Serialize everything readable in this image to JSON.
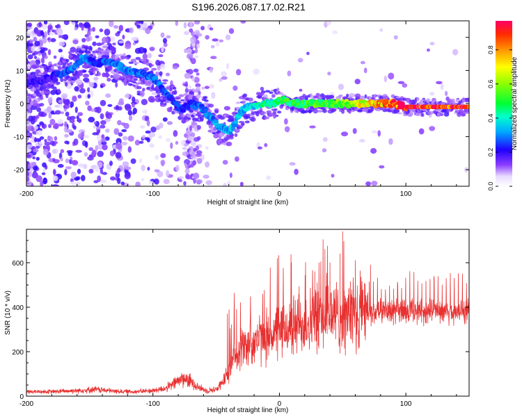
{
  "figure": {
    "title": "S196.2026.087.17.02.R21"
  },
  "chart_data": [
    {
      "type": "heatmap",
      "name": "spectrogram",
      "xlabel": "Height of straight line (km)",
      "ylabel": "Frequency (Hz)",
      "xlim": [
        -200,
        150
      ],
      "ylim": [
        -25,
        25
      ],
      "xticks": [
        -200,
        -100,
        0,
        100
      ],
      "yticks": [
        20,
        10,
        0,
        -10,
        -20
      ],
      "colorbar": {
        "label": "Normalized spectral amplitude",
        "range": [
          0,
          0.97
        ],
        "ticks": [
          0.0,
          0.2,
          0.4,
          0.6,
          0.8
        ]
      },
      "ridge_line": {
        "x": [
          -200,
          -180,
          -165,
          -155,
          -145,
          -135,
          -120,
          -110,
          -100,
          -92,
          -85,
          -78,
          -70,
          -62,
          -55,
          -48,
          -42,
          -38,
          -35,
          -30,
          -25,
          -20,
          -15,
          -10,
          -5,
          0,
          5,
          10,
          20,
          30,
          40,
          50,
          60,
          70,
          80,
          90,
          100,
          110,
          120,
          130,
          140,
          150
        ],
        "y": [
          6,
          8,
          10,
          14,
          12,
          13,
          10,
          9,
          8,
          4,
          1,
          -2,
          0,
          -1,
          -4,
          -7,
          -8,
          -8,
          -6,
          -2,
          -1,
          -1,
          0,
          0,
          0,
          1,
          1,
          0,
          0,
          0,
          0,
          0,
          0,
          0,
          0,
          0,
          -1,
          -1,
          -1,
          -1,
          -1,
          -1
        ],
        "amplitude": [
          0.2,
          0.2,
          0.3,
          0.3,
          0.25,
          0.3,
          0.3,
          0.3,
          0.3,
          0.28,
          0.25,
          0.25,
          0.25,
          0.3,
          0.3,
          0.35,
          0.35,
          0.35,
          0.35,
          0.35,
          0.4,
          0.4,
          0.45,
          0.45,
          0.45,
          0.5,
          0.5,
          0.5,
          0.5,
          0.55,
          0.55,
          0.6,
          0.7,
          0.75,
          0.8,
          0.85,
          0.95,
          0.95,
          0.95,
          0.95,
          0.95,
          0.95
        ]
      }
    },
    {
      "type": "line",
      "name": "snr",
      "xlabel": "Height of straight line (km)",
      "ylabel": "SNR (10 * v/v)",
      "xlim": [
        -200,
        150
      ],
      "ylim": [
        0,
        750
      ],
      "xticks": [
        -200,
        -100,
        0,
        100
      ],
      "yticks": [
        0,
        200,
        400,
        600
      ],
      "color": "#e83030",
      "series": [
        {
          "name": "SNR",
          "x": [
            -200,
            -180,
            -160,
            -145,
            -130,
            -115,
            -100,
            -90,
            -85,
            -80,
            -76,
            -72,
            -68,
            -64,
            -58,
            -50,
            -45,
            -42,
            -40,
            -38,
            -36,
            -34,
            -30,
            -25,
            -20,
            -15,
            -10,
            -5,
            0,
            5,
            10,
            15,
            20,
            25,
            30,
            35,
            40,
            45,
            50,
            55,
            60,
            70,
            80,
            90,
            100,
            110,
            120,
            130,
            140,
            150
          ],
          "y": [
            20,
            20,
            25,
            30,
            22,
            20,
            25,
            35,
            50,
            70,
            80,
            70,
            60,
            40,
            25,
            30,
            60,
            90,
            110,
            140,
            170,
            200,
            220,
            230,
            250,
            260,
            270,
            280,
            290,
            300,
            310,
            320,
            330,
            340,
            350,
            360,
            370,
            360,
            350,
            360,
            370,
            380,
            375,
            380,
            380,
            385,
            380,
            385,
            380,
            380
          ],
          "peaks": [
            {
              "x": 36,
              "y": 660
            },
            {
              "x": 40,
              "y": 600
            },
            {
              "x": 48,
              "y": 640
            },
            {
              "x": 50,
              "y": 740
            },
            {
              "x": 28,
              "y": 560
            },
            {
              "x": 60,
              "y": 610
            },
            {
              "x": 72,
              "y": 590
            }
          ]
        }
      ]
    }
  ]
}
